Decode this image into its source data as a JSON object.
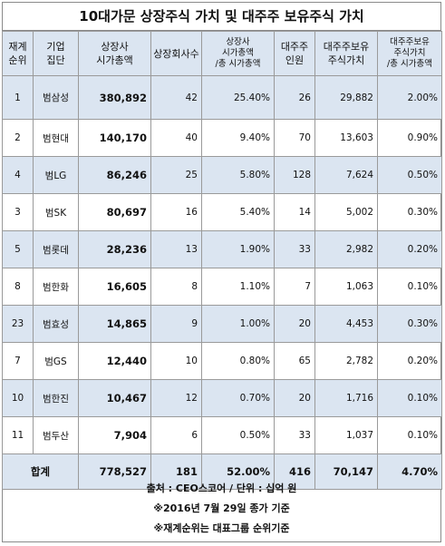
{
  "title": "10대가문 상장주식 가치 및 대주주 보유주식 가치",
  "headers": [
    [
      "재계",
      "순위"
    ],
    [
      "기업",
      "집단"
    ],
    [
      "상장사",
      "시가총액"
    ],
    [
      "상장회사수"
    ],
    [
      "상장사",
      "시가총액",
      "/총 시가총액"
    ],
    [
      "대주주",
      "인원"
    ],
    [
      "대주주보유",
      "주식가치"
    ],
    [
      "대주주보유",
      "주식가치",
      "/총 시가총액"
    ]
  ],
  "rows": [
    [
      "1",
      "범삼성",
      "380,892",
      "42",
      "25.40%",
      "26",
      "29,882",
      "2.00%"
    ],
    [
      "2",
      "범현대",
      "140,170",
      "40",
      "9.40%",
      "70",
      "13,603",
      "0.90%"
    ],
    [
      "4",
      "범LG",
      "86,246",
      "25",
      "5.80%",
      "128",
      "7,624",
      "0.50%"
    ],
    [
      "3",
      "범SK",
      "80,697",
      "16",
      "5.40%",
      "14",
      "5,002",
      "0.30%"
    ],
    [
      "5",
      "범롯데",
      "28,236",
      "13",
      "1.90%",
      "33",
      "2,982",
      "0.20%"
    ],
    [
      "8",
      "범한화",
      "16,605",
      "8",
      "1.10%",
      "7",
      "1,063",
      "0.10%"
    ],
    [
      "23",
      "범효성",
      "14,865",
      "9",
      "1.00%",
      "20",
      "4,453",
      "0.30%"
    ],
    [
      "7",
      "범GS",
      "12,440",
      "10",
      "0.80%",
      "65",
      "2,782",
      "0.20%"
    ],
    [
      "10",
      "범한진",
      "10,467",
      "12",
      "0.70%",
      "20",
      "1,716",
      "0.10%"
    ],
    [
      "11",
      "범두산",
      "7,904",
      "6",
      "0.50%",
      "33",
      "1,037",
      "0.10%"
    ]
  ],
  "total": [
    "합계",
    "778,527",
    "181",
    "52.00%",
    "416",
    "70,147",
    "4.70%"
  ],
  "notes": [
    "출처 : CEO스코어 / 단위 : 십억 원",
    "※2016년 7월 29일 종가 기준",
    "※재계순위는 대표그룹 순위기준"
  ],
  "colors": {
    "header_bg": "#dbe5f1",
    "border": "#9a9a9a"
  }
}
